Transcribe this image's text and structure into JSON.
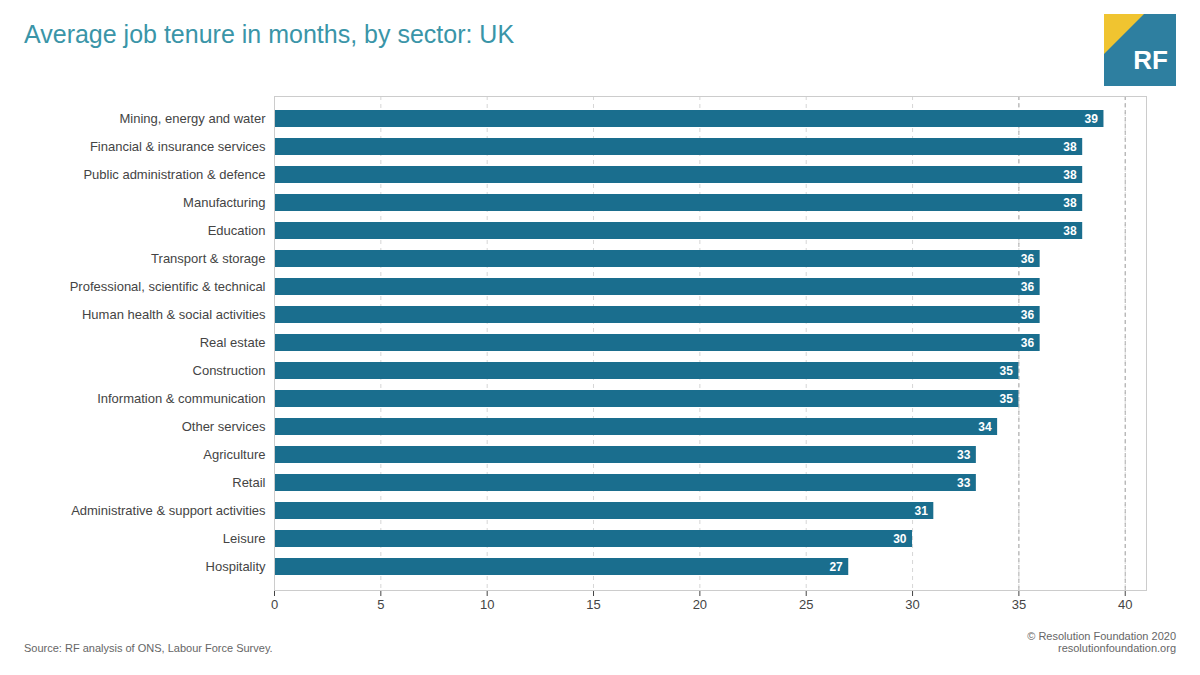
{
  "chart_data": {
    "type": "bar",
    "orientation": "horizontal",
    "title": "Average job tenure in months, by sector: UK",
    "categories": [
      "Mining, energy and water",
      "Financial & insurance services",
      "Public administration & defence",
      "Manufacturing",
      "Education",
      "Transport & storage",
      "Professional, scientific & technical",
      "Human health & social activities",
      "Real estate",
      "Construction",
      "Information & communication",
      "Other services",
      "Agriculture",
      "Retail",
      "Administrative & support activities",
      "Leisure",
      "Hospitality"
    ],
    "values": [
      39,
      38,
      38,
      38,
      38,
      36,
      36,
      36,
      36,
      35,
      35,
      34,
      33,
      33,
      31,
      30,
      27
    ],
    "color": "#1a6e8e",
    "xlim": [
      0,
      41
    ],
    "xticks": [
      0,
      5,
      10,
      15,
      20,
      25,
      30,
      35,
      40
    ],
    "grid": true,
    "reference_lines_x": [
      35,
      40
    ],
    "data_labels": true,
    "annotations": [
      "Source: RF analysis of ONS, Labour Force Survey.",
      "© Resolution Foundation 2020\nresolutionfoundation.org",
      "RF"
    ]
  }
}
